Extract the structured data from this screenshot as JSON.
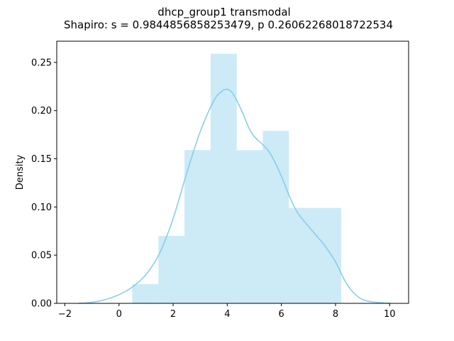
{
  "chart_data": {
    "type": "bar",
    "title": "dhcp_group1 transmodal",
    "subtitle": "Shapiro: s = 0.9844856858253479, p 0.26062268018722534",
    "xlabel": "",
    "ylabel": "Density",
    "xlim": [
      -2.3,
      10.7
    ],
    "ylim": [
      0,
      0.272
    ],
    "xticks": [
      -2,
      0,
      2,
      4,
      6,
      8,
      10
    ],
    "xtick_labels": [
      "−2",
      "0",
      "2",
      "4",
      "6",
      "8",
      "10"
    ],
    "yticks": [
      0.0,
      0.05,
      0.1,
      0.15,
      0.2,
      0.25
    ],
    "ytick_labels": [
      "0.00",
      "0.05",
      "0.10",
      "0.15",
      "0.20",
      "0.25"
    ],
    "grid": false,
    "histogram": {
      "color": "#87CEEB",
      "bins": [
        {
          "x0": 0.49,
          "x1": 1.455,
          "density": 0.02
        },
        {
          "x0": 1.455,
          "x1": 2.42,
          "density": 0.07
        },
        {
          "x0": 2.42,
          "x1": 3.385,
          "density": 0.159
        },
        {
          "x0": 3.385,
          "x1": 4.35,
          "density": 0.259
        },
        {
          "x0": 4.35,
          "x1": 5.315,
          "density": 0.159
        },
        {
          "x0": 5.315,
          "x1": 6.28,
          "density": 0.179
        },
        {
          "x0": 6.28,
          "x1": 7.245,
          "density": 0.099
        },
        {
          "x0": 7.245,
          "x1": 8.21,
          "density": 0.099
        }
      ]
    },
    "kde": {
      "color": "#87CEEB",
      "x": [
        -1.5,
        -1.0,
        -0.5,
        0.0,
        0.5,
        1.0,
        1.5,
        2.0,
        2.5,
        3.0,
        3.5,
        3.8,
        4.0,
        4.2,
        4.5,
        4.8,
        5.0,
        5.3,
        5.6,
        6.0,
        6.3,
        6.6,
        7.0,
        7.3,
        7.6,
        8.0,
        8.3,
        8.6,
        9.0,
        9.5,
        10.0
      ],
      "y": [
        0.0,
        0.001,
        0.004,
        0.009,
        0.017,
        0.03,
        0.052,
        0.088,
        0.135,
        0.178,
        0.21,
        0.22,
        0.222,
        0.218,
        0.202,
        0.182,
        0.173,
        0.165,
        0.155,
        0.132,
        0.111,
        0.094,
        0.08,
        0.07,
        0.06,
        0.043,
        0.026,
        0.013,
        0.004,
        0.001,
        0.0
      ]
    }
  }
}
